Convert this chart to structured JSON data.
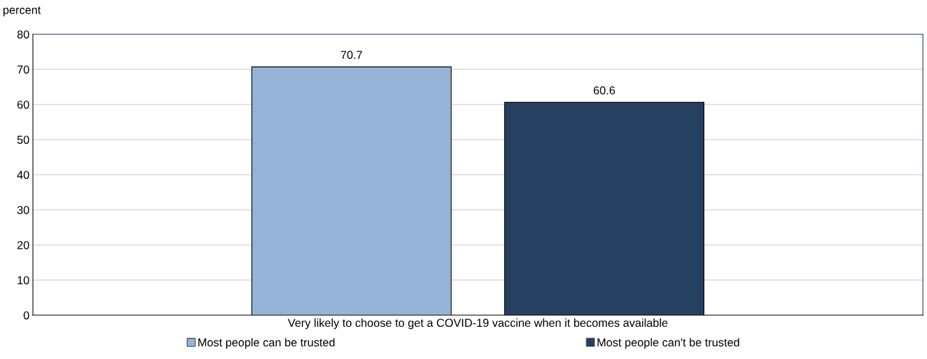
{
  "chart_data": {
    "type": "bar",
    "ylabel": "percent",
    "categories": [
      "Very likely to choose to get a COVID-19 vaccine when it becomes available"
    ],
    "series": [
      {
        "name": "Most people can be trusted",
        "color": "#95b3d7",
        "values": [
          70.7
        ]
      },
      {
        "name": "Most people can't be trusted",
        "color": "#264061",
        "values": [
          60.6
        ]
      }
    ],
    "ylim": [
      0,
      80
    ],
    "yticks": [
      0,
      10,
      20,
      30,
      40,
      50,
      60,
      70,
      80
    ],
    "grid": "y",
    "legend": "bottom",
    "data_labels": true
  }
}
